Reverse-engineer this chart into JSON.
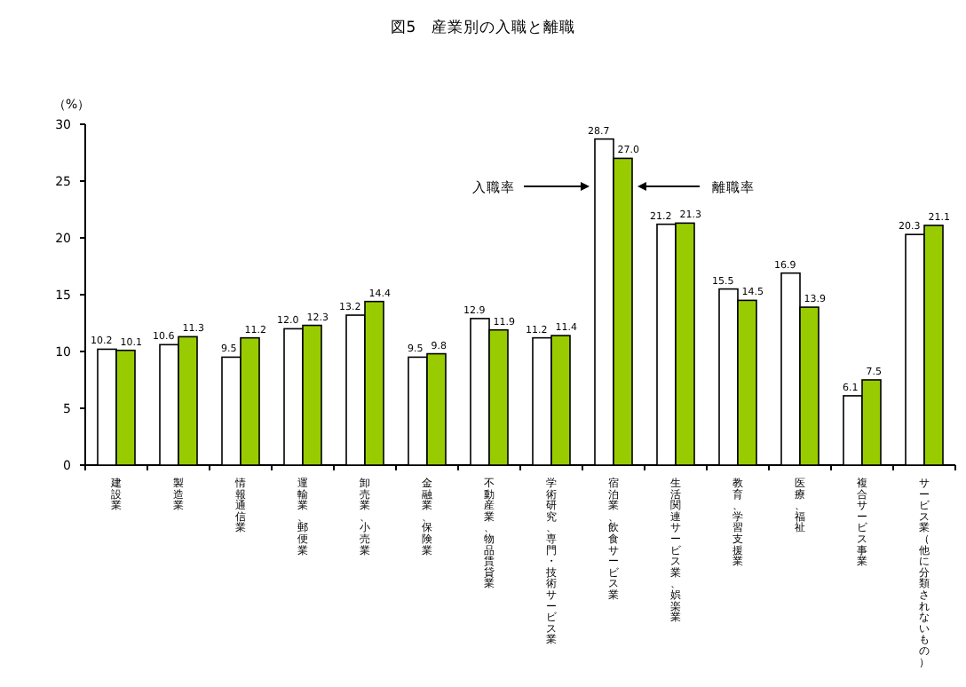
{
  "chart_data": {
    "type": "bar",
    "title": "図5　産業別の入職と離職",
    "ylabel": "（%）",
    "categories": [
      "建設業",
      "製造業",
      "情報通信業",
      "運輸業、郵便業",
      "卸売業、小売業",
      "金融業、保険業",
      "不動産業、物品賃貸業",
      "学術研究、専門・技術サービス業",
      "宿泊業、飲食サービス業",
      "生活関連サービス業、娯楽業",
      "教育、学習支援業",
      "医療、福祉",
      "複合サービス事業",
      "サービス業（他に分類されないもの）"
    ],
    "series": [
      {
        "name": "入職率",
        "color": "#ffffff",
        "values": [
          10.2,
          10.6,
          9.5,
          12.0,
          13.2,
          9.5,
          12.9,
          11.2,
          28.7,
          21.2,
          15.5,
          16.9,
          6.1,
          20.3
        ],
        "value_labels": [
          "10.2",
          "10.6",
          "9.5",
          "12.0",
          "13.2",
          "9.5",
          "12.9",
          "11.2",
          "28.7",
          "21.2",
          "15.5",
          "16.9",
          "6.1",
          "20.3"
        ]
      },
      {
        "name": "離職率",
        "color": "#99cc00",
        "values": [
          10.1,
          11.3,
          11.2,
          12.3,
          14.4,
          9.8,
          11.9,
          11.4,
          27.0,
          21.3,
          14.5,
          13.9,
          7.5,
          21.1
        ],
        "value_labels": [
          "10.1",
          "11.3",
          "11.2",
          "12.3",
          "14.4",
          "9.8",
          "11.9",
          "11.4",
          "27.0",
          "21.3",
          "14.5",
          "13.9",
          "7.5",
          "21.1"
        ]
      }
    ],
    "ylim": [
      0,
      30
    ],
    "yticks": [
      0,
      5,
      10,
      15,
      20,
      25,
      30
    ],
    "legend": "top",
    "grid": false
  }
}
